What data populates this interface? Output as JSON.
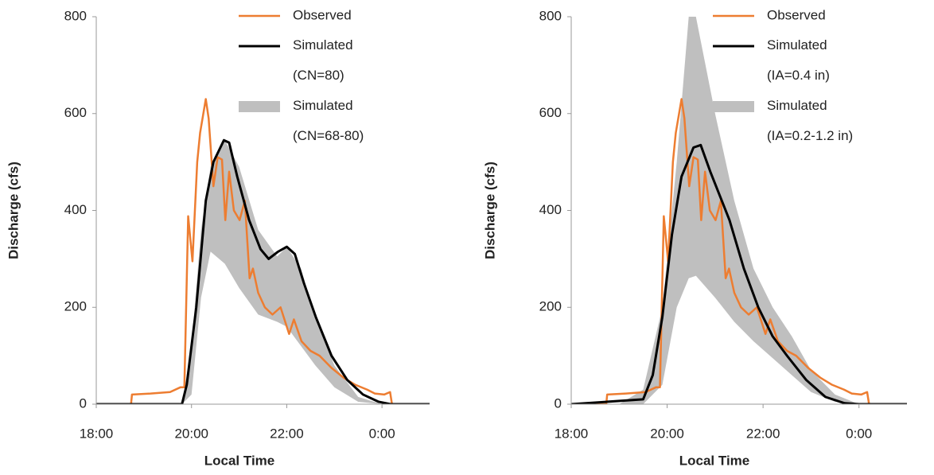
{
  "chart_data": [
    {
      "type": "line",
      "xlabel": "Local Time",
      "ylabel": "Discharge (cfs)",
      "xlim": [
        18,
        25
      ],
      "ylim": [
        0,
        800
      ],
      "xticks": [
        {
          "value": 18,
          "label": "18:00"
        },
        {
          "value": 20,
          "label": "20:00"
        },
        {
          "value": 22,
          "label": "22:00"
        },
        {
          "value": 24,
          "label": "0:00"
        }
      ],
      "yticks": [
        0,
        200,
        400,
        600,
        800
      ],
      "series": [
        {
          "name": "Observed",
          "color": "#ed7d31",
          "x": [
            18,
            18.73,
            18.75,
            19.14,
            19.55,
            19.77,
            19.85,
            19.93,
            20.02,
            20.12,
            20.18,
            20.3,
            20.36,
            20.46,
            20.55,
            20.64,
            20.71,
            20.79,
            20.89,
            21.01,
            21.12,
            21.22,
            21.29,
            21.4,
            21.54,
            21.7,
            21.87,
            22.05,
            22.15,
            22.31,
            22.5,
            22.69,
            22.94,
            23.19,
            23.44,
            23.69,
            23.85,
            24.05,
            24.17,
            24.21,
            25
          ],
          "values": [
            0,
            0,
            20,
            22,
            25,
            35,
            35,
            388,
            295,
            500,
            560,
            630,
            590,
            450,
            510,
            505,
            380,
            480,
            400,
            380,
            420,
            260,
            280,
            230,
            200,
            185,
            200,
            145,
            175,
            130,
            110,
            100,
            75,
            55,
            40,
            30,
            22,
            20,
            25,
            0,
            0
          ]
        },
        {
          "name": "Simulated (CN=80)",
          "color": "#000000",
          "x": [
            18,
            19.8,
            19.9,
            20.1,
            20.3,
            20.46,
            20.68,
            20.79,
            20.96,
            21.21,
            21.45,
            21.62,
            21.82,
            22.0,
            22.17,
            22.36,
            22.61,
            22.94,
            23.27,
            23.6,
            23.93,
            24.18,
            25
          ],
          "values": [
            0,
            0,
            40,
            200,
            420,
            500,
            545,
            540,
            470,
            380,
            320,
            300,
            315,
            325,
            310,
            250,
            180,
            100,
            50,
            20,
            5,
            0,
            0
          ]
        },
        {
          "name": "Simulated (CN=68-80)",
          "color": "#bfbfbf",
          "type": "band",
          "x": [
            18,
            19.8,
            20,
            20.2,
            20.4,
            20.7,
            21,
            21.4,
            21.8,
            22,
            22.3,
            22.6,
            23,
            23.5,
            24,
            25
          ],
          "high": [
            0,
            0,
            120,
            360,
            490,
            545,
            490,
            360,
            305,
            325,
            280,
            180,
            80,
            15,
            0,
            0
          ],
          "low": [
            0,
            0,
            20,
            220,
            315,
            290,
            240,
            185,
            170,
            160,
            120,
            80,
            35,
            5,
            0,
            0
          ]
        }
      ]
    },
    {
      "type": "line",
      "xlabel": "Local Time",
      "ylabel": "Discharge (cfs)",
      "xlim": [
        18,
        25
      ],
      "ylim": [
        0,
        800
      ],
      "xticks": [
        {
          "value": 18,
          "label": "18:00"
        },
        {
          "value": 20,
          "label": "20:00"
        },
        {
          "value": 22,
          "label": "22:00"
        },
        {
          "value": 24,
          "label": "0:00"
        }
      ],
      "yticks": [
        0,
        200,
        400,
        600,
        800
      ],
      "series": [
        {
          "name": "Observed",
          "color": "#ed7d31",
          "x": [
            18,
            18.73,
            18.75,
            19.14,
            19.55,
            19.77,
            19.85,
            19.93,
            20.02,
            20.12,
            20.18,
            20.3,
            20.36,
            20.46,
            20.55,
            20.64,
            20.71,
            20.79,
            20.89,
            21.01,
            21.12,
            21.22,
            21.29,
            21.4,
            21.54,
            21.7,
            21.87,
            22.05,
            22.15,
            22.31,
            22.5,
            22.69,
            22.94,
            23.19,
            23.44,
            23.69,
            23.85,
            24.05,
            24.17,
            24.21,
            25
          ],
          "values": [
            0,
            0,
            20,
            22,
            25,
            35,
            35,
            388,
            295,
            500,
            560,
            630,
            590,
            450,
            510,
            505,
            380,
            480,
            400,
            380,
            420,
            260,
            280,
            230,
            200,
            185,
            200,
            145,
            175,
            130,
            110,
            100,
            75,
            55,
            40,
            30,
            22,
            20,
            25,
            0,
            0
          ]
        },
        {
          "name": "Simulated (IA=0.4 in)",
          "color": "#000000",
          "x": [
            18,
            19.5,
            19.7,
            19.9,
            20.1,
            20.3,
            20.55,
            20.7,
            20.9,
            21.3,
            21.6,
            21.9,
            22.2,
            22.5,
            22.9,
            23.3,
            23.7,
            24,
            25
          ],
          "values": [
            0,
            10,
            60,
            180,
            350,
            470,
            530,
            535,
            480,
            380,
            280,
            200,
            140,
            100,
            50,
            15,
            2,
            0,
            0
          ]
        },
        {
          "name": "Simulated (IA=0.2-1.2 in)",
          "color": "#bfbfbf",
          "type": "band",
          "x": [
            18,
            19,
            19.5,
            19.9,
            20.2,
            20.45,
            20.6,
            21,
            21.4,
            21.8,
            22.2,
            22.6,
            23,
            23.5,
            24,
            25
          ],
          "high": [
            0,
            0,
            30,
            200,
            500,
            800,
            800,
            600,
            420,
            280,
            200,
            140,
            70,
            20,
            0,
            0
          ],
          "low": [
            0,
            0,
            0,
            40,
            200,
            260,
            265,
            220,
            170,
            130,
            95,
            60,
            25,
            5,
            0,
            0
          ]
        }
      ]
    }
  ]
}
